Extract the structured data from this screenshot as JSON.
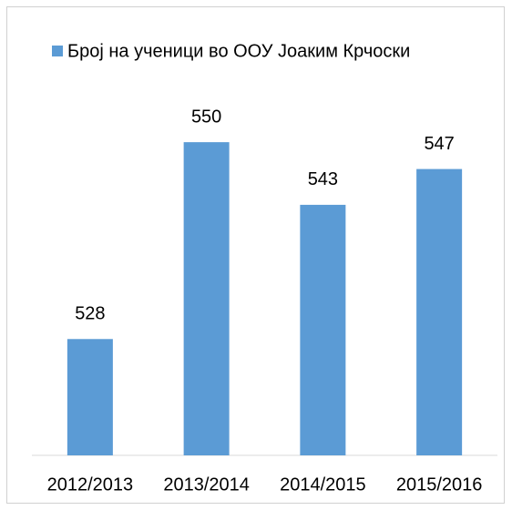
{
  "chart_data": {
    "type": "bar",
    "categories": [
      "2012/2013",
      "2013/2014",
      "2014/2015",
      "2015/2016"
    ],
    "series": [
      {
        "name": "Број на ученици во ООУ Јоаким Крчоски",
        "color": "#5b9bd5",
        "values": [
          528,
          550,
          543,
          547
        ]
      }
    ],
    "ylim": [
      515,
      555
    ],
    "legend": "top"
  }
}
